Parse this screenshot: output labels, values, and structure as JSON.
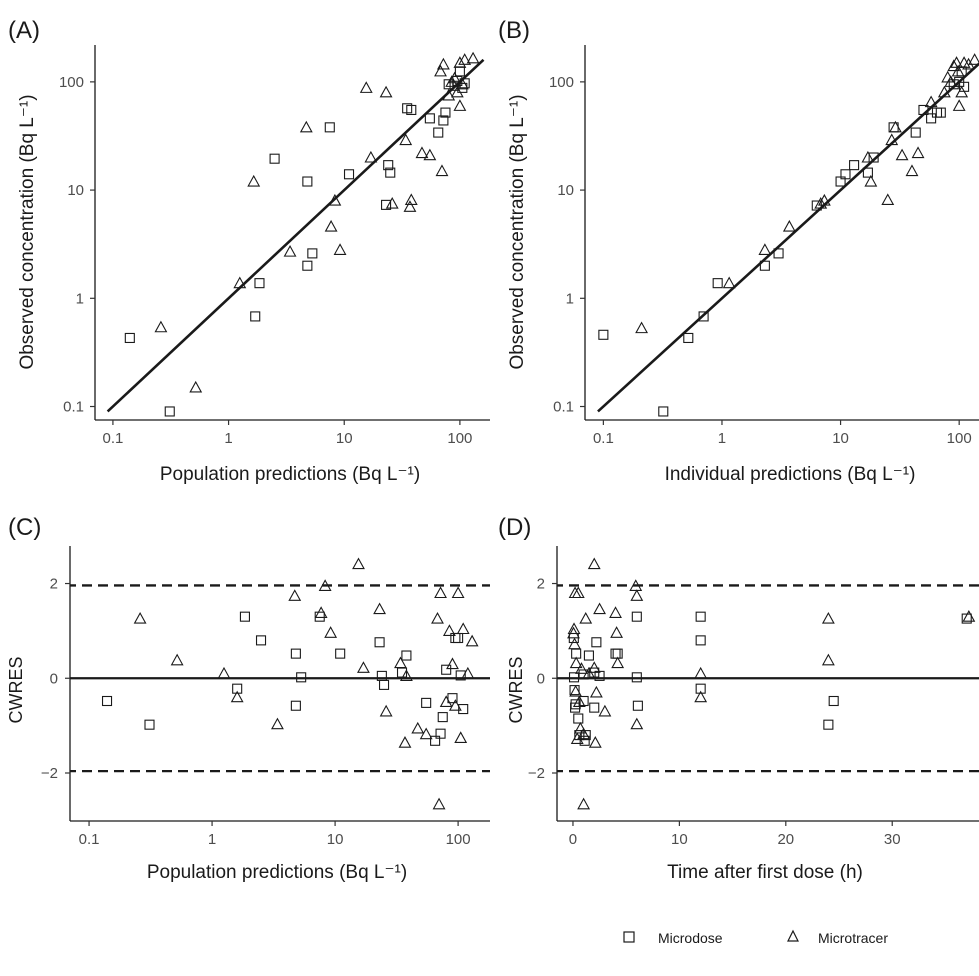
{
  "chart_data": [
    {
      "panel": "(A)",
      "type": "scatter",
      "xlabel": "Population predictions (Bq L⁻¹)",
      "ylabel": "Observed concentration (Bq L⁻¹)",
      "xscale": "log",
      "yscale": "log",
      "xlim": [
        0.07,
        175
      ],
      "ylim": [
        0.08,
        210
      ],
      "xticks": [
        0.1,
        1,
        10,
        100
      ],
      "xtick_labels": [
        "0.1",
        "1",
        "10",
        "100"
      ],
      "yticks": [
        0.1,
        1,
        10,
        100
      ],
      "ytick_labels": [
        "0.1",
        "1",
        "10",
        "100"
      ],
      "grid": false,
      "reference_line": {
        "type": "identity",
        "from": 0.09,
        "to": 160,
        "style": "solid"
      },
      "series": [
        {
          "name": "Microdose",
          "marker": "square",
          "points": [
            [
              0.14,
              0.43
            ],
            [
              0.31,
              0.09
            ],
            [
              1.7,
              0.68
            ],
            [
              1.85,
              1.38
            ],
            [
              2.5,
              19.5
            ],
            [
              4.8,
              12
            ],
            [
              4.8,
              2.0
            ],
            [
              5.3,
              2.6
            ],
            [
              7.5,
              38
            ],
            [
              11,
              14
            ],
            [
              23,
              7.3
            ],
            [
              24,
              17
            ],
            [
              25,
              14.5
            ],
            [
              35,
              57
            ],
            [
              38,
              55
            ],
            [
              55,
              46
            ],
            [
              65,
              34
            ],
            [
              72,
              44
            ],
            [
              75,
              52
            ],
            [
              80,
              95
            ],
            [
              90,
              92
            ],
            [
              95,
              102
            ],
            [
              100,
              125
            ],
            [
              105,
              88
            ],
            [
              110,
              97
            ]
          ]
        },
        {
          "name": "Microtracer",
          "marker": "triangle",
          "points": [
            [
              0.26,
              0.54
            ],
            [
              0.52,
              0.15
            ],
            [
              1.25,
              1.38
            ],
            [
              1.65,
              12
            ],
            [
              3.4,
              2.7
            ],
            [
              4.7,
              38
            ],
            [
              7.7,
              4.6
            ],
            [
              8.3,
              8
            ],
            [
              9.2,
              2.8
            ],
            [
              15.5,
              88
            ],
            [
              17,
              20
            ],
            [
              23,
              80
            ],
            [
              26,
              7.5
            ],
            [
              34,
              29
            ],
            [
              37,
              7.0
            ],
            [
              38,
              8.1
            ],
            [
              47,
              22
            ],
            [
              55,
              21
            ],
            [
              68,
              125
            ],
            [
              70,
              15
            ],
            [
              72,
              145
            ],
            [
              80,
              75
            ],
            [
              85,
              100
            ],
            [
              90,
              108
            ],
            [
              95,
              80
            ],
            [
              100,
              150
            ],
            [
              100,
              60
            ],
            [
              105,
              95
            ],
            [
              110,
              160
            ],
            [
              130,
              165
            ]
          ]
        }
      ]
    },
    {
      "panel": "(B)",
      "type": "scatter",
      "xlabel": "Individual predictions (Bq L⁻¹)",
      "ylabel": "Observed concentration (Bq L⁻¹)",
      "xscale": "log",
      "yscale": "log",
      "xlim": [
        0.07,
        175
      ],
      "ylim": [
        0.08,
        210
      ],
      "xticks": [
        0.1,
        1,
        10,
        100
      ],
      "xtick_labels": [
        "0.1",
        "1",
        "10",
        "100"
      ],
      "yticks": [
        0.1,
        1,
        10,
        100
      ],
      "ytick_labels": [
        "0.1",
        "1",
        "10",
        "100"
      ],
      "grid": false,
      "reference_line": {
        "type": "identity",
        "from": 0.09,
        "to": 160,
        "style": "solid"
      },
      "series": [
        {
          "name": "Microdose",
          "marker": "square",
          "points": [
            [
              0.1,
              0.46
            ],
            [
              0.32,
              0.09
            ],
            [
              0.52,
              0.43
            ],
            [
              0.7,
              0.68
            ],
            [
              0.92,
              1.38
            ],
            [
              2.3,
              2.0
            ],
            [
              3.0,
              2.6
            ],
            [
              6.3,
              7.2
            ],
            [
              10,
              12
            ],
            [
              11,
              14
            ],
            [
              13,
              17
            ],
            [
              17,
              14.5
            ],
            [
              19,
              20
            ],
            [
              28,
              38
            ],
            [
              43,
              34
            ],
            [
              50,
              55
            ],
            [
              58,
              46
            ],
            [
              65,
              52
            ],
            [
              70,
              52
            ],
            [
              90,
              95
            ],
            [
              100,
              100
            ],
            [
              105,
              125
            ],
            [
              110,
              90
            ]
          ]
        },
        {
          "name": "Microtracer",
          "marker": "triangle",
          "points": [
            [
              0.21,
              0.53
            ],
            [
              1.15,
              1.38
            ],
            [
              2.3,
              2.8
            ],
            [
              3.7,
              4.6
            ],
            [
              6.8,
              7.5
            ],
            [
              7.3,
              8
            ],
            [
              18,
              12
            ],
            [
              17,
              20
            ],
            [
              25,
              8.1
            ],
            [
              27,
              29
            ],
            [
              29,
              38
            ],
            [
              33,
              21
            ],
            [
              40,
              15
            ],
            [
              45,
              22
            ],
            [
              58,
              65
            ],
            [
              75,
              80
            ],
            [
              80,
              110
            ],
            [
              85,
              100
            ],
            [
              90,
              140
            ],
            [
              95,
              150
            ],
            [
              98,
              125
            ],
            [
              100,
              60
            ],
            [
              105,
              80
            ],
            [
              110,
              150
            ],
            [
              120,
              145
            ],
            [
              135,
              160
            ]
          ]
        }
      ]
    },
    {
      "panel": "(C)",
      "type": "scatter",
      "xlabel": "Population predictions (Bq L⁻¹)",
      "ylabel": "CWRES",
      "xscale": "log",
      "yscale": "linear",
      "xlim": [
        0.07,
        175
      ],
      "ylim": [
        -2.95,
        2.75
      ],
      "xticks": [
        0.1,
        1,
        10,
        100
      ],
      "xtick_labels": [
        "0.1",
        "1",
        "10",
        "100"
      ],
      "yticks": [
        -2,
        0,
        2
      ],
      "ytick_labels": [
        "−2",
        "0",
        "2"
      ],
      "grid": false,
      "reference_lines": [
        {
          "y": 0,
          "style": "solid"
        },
        {
          "y": 1.96,
          "style": "dashed"
        },
        {
          "y": -1.96,
          "style": "dashed"
        }
      ],
      "series": [
        {
          "name": "Microdose",
          "marker": "square",
          "points": [
            [
              0.14,
              -0.48
            ],
            [
              0.31,
              -0.98
            ],
            [
              1.6,
              -0.22
            ],
            [
              1.85,
              1.3
            ],
            [
              2.5,
              0.8
            ],
            [
              4.8,
              0.52
            ],
            [
              4.8,
              -0.58
            ],
            [
              5.3,
              0.02
            ],
            [
              7.5,
              1.3
            ],
            [
              11,
              0.52
            ],
            [
              23,
              0.76
            ],
            [
              24,
              0.05
            ],
            [
              25,
              -0.14
            ],
            [
              35,
              0.12
            ],
            [
              38,
              0.48
            ],
            [
              55,
              -0.52
            ],
            [
              65,
              -1.32
            ],
            [
              72,
              -1.17
            ],
            [
              75,
              -0.82
            ],
            [
              80,
              0.18
            ],
            [
              90,
              -0.42
            ],
            [
              95,
              0.85
            ],
            [
              100,
              0.85
            ],
            [
              105,
              0.06
            ],
            [
              110,
              -0.65
            ]
          ]
        },
        {
          "name": "Microtracer",
          "marker": "triangle",
          "points": [
            [
              0.26,
              1.26
            ],
            [
              0.52,
              0.38
            ],
            [
              1.25,
              0.1
            ],
            [
              1.6,
              -0.4
            ],
            [
              3.4,
              -0.97
            ],
            [
              4.7,
              1.74
            ],
            [
              7.7,
              1.38
            ],
            [
              8.3,
              1.95
            ],
            [
              9.2,
              0.96
            ],
            [
              15.5,
              2.41
            ],
            [
              17,
              0.22
            ],
            [
              23,
              1.46
            ],
            [
              26,
              -0.7
            ],
            [
              34,
              0.32
            ],
            [
              37,
              -1.36
            ],
            [
              38,
              0.05
            ],
            [
              47,
              -1.06
            ],
            [
              55,
              -1.18
            ],
            [
              68,
              1.26
            ],
            [
              70,
              -2.66
            ],
            [
              72,
              1.8
            ],
            [
              80,
              -0.5
            ],
            [
              85,
              1.0
            ],
            [
              90,
              0.3
            ],
            [
              95,
              -0.58
            ],
            [
              100,
              1.8
            ],
            [
              105,
              -1.26
            ],
            [
              110,
              1.04
            ],
            [
              120,
              0.1
            ],
            [
              130,
              0.78
            ]
          ]
        }
      ]
    },
    {
      "panel": "(D)",
      "type": "scatter",
      "xlabel": "Time after first dose (h)",
      "ylabel": "CWRES",
      "xscale": "linear",
      "yscale": "linear",
      "xlim": [
        -1.5,
        39
      ],
      "ylim": [
        -2.95,
        2.75
      ],
      "xticks": [
        0,
        10,
        20,
        30
      ],
      "xtick_labels": [
        "0",
        "10",
        "20",
        "30"
      ],
      "yticks": [
        -2,
        0,
        2
      ],
      "ytick_labels": [
        "−2",
        "0",
        "2"
      ],
      "grid": false,
      "reference_lines": [
        {
          "y": 0,
          "style": "solid"
        },
        {
          "y": 1.96,
          "style": "dashed"
        },
        {
          "y": -1.96,
          "style": "dashed"
        }
      ],
      "series": [
        {
          "name": "Microdose",
          "marker": "square",
          "points": [
            [
              0.08,
              0.85
            ],
            [
              0.1,
              0.02
            ],
            [
              0.15,
              -0.25
            ],
            [
              0.2,
              -0.62
            ],
            [
              0.25,
              -0.55
            ],
            [
              0.3,
              0.52
            ],
            [
              0.5,
              -0.85
            ],
            [
              0.6,
              -1.2
            ],
            [
              1.0,
              -0.48
            ],
            [
              1.0,
              0.08
            ],
            [
              1.1,
              -1.32
            ],
            [
              1.2,
              -1.2
            ],
            [
              1.5,
              0.48
            ],
            [
              2.0,
              0.12
            ],
            [
              2.0,
              -0.62
            ],
            [
              2.2,
              0.76
            ],
            [
              2.5,
              0.05
            ],
            [
              4.0,
              0.52
            ],
            [
              4.2,
              0.52
            ],
            [
              6.0,
              1.3
            ],
            [
              6.0,
              0.02
            ],
            [
              6.1,
              -0.58
            ],
            [
              12.0,
              1.3
            ],
            [
              12.0,
              0.8
            ],
            [
              12.0,
              -0.22
            ],
            [
              24.0,
              -0.98
            ],
            [
              24.5,
              -0.48
            ],
            [
              37.0,
              1.26
            ]
          ]
        },
        {
          "name": "Microtracer",
          "marker": "triangle",
          "points": [
            [
              0.05,
              0.95
            ],
            [
              0.1,
              1.04
            ],
            [
              0.15,
              0.72
            ],
            [
              0.2,
              1.8
            ],
            [
              0.25,
              -0.28
            ],
            [
              0.3,
              0.32
            ],
            [
              0.4,
              -1.28
            ],
            [
              0.5,
              1.8
            ],
            [
              0.6,
              -0.5
            ],
            [
              0.7,
              -1.06
            ],
            [
              0.8,
              0.2
            ],
            [
              1.0,
              -2.66
            ],
            [
              1.0,
              -1.18
            ],
            [
              1.2,
              1.26
            ],
            [
              1.5,
              0.1
            ],
            [
              2.0,
              0.22
            ],
            [
              2.0,
              2.41
            ],
            [
              2.1,
              -1.36
            ],
            [
              2.2,
              -0.3
            ],
            [
              2.5,
              1.46
            ],
            [
              3.0,
              -0.7
            ],
            [
              4.0,
              1.38
            ],
            [
              4.1,
              0.96
            ],
            [
              4.2,
              0.32
            ],
            [
              5.9,
              1.95
            ],
            [
              6.0,
              1.74
            ],
            [
              6.0,
              -0.97
            ],
            [
              12.0,
              0.1
            ],
            [
              12.0,
              -0.4
            ],
            [
              24.0,
              1.26
            ],
            [
              24.0,
              0.38
            ],
            [
              37.2,
              1.3
            ]
          ]
        }
      ]
    }
  ],
  "legend": {
    "placement": "bottom-right",
    "items": [
      {
        "label": "Microdose",
        "marker": "square"
      },
      {
        "label": "Microtracer",
        "marker": "triangle"
      }
    ]
  }
}
